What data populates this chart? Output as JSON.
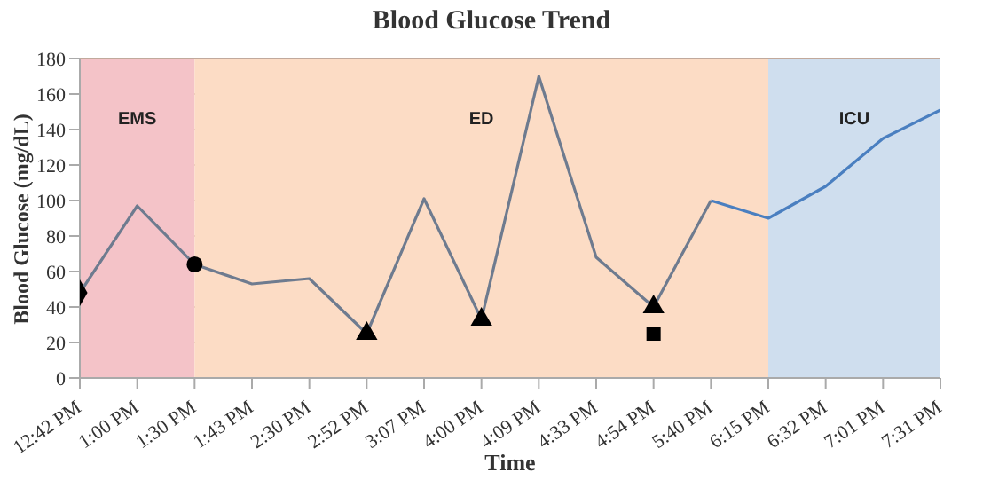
{
  "chart_data": {
    "type": "line",
    "title": "Blood Glucose Trend",
    "xlabel": "Time",
    "ylabel": "Blood Glucose (mg/dL)",
    "categories": [
      "12:42 PM",
      "1:00 PM",
      "1:30 PM",
      "1:43 PM",
      "2:30 PM",
      "2:52 PM",
      "3:07 PM",
      "4:00 PM",
      "4:09 PM",
      "4:33 PM",
      "4:54 PM",
      "5:40 PM",
      "6:15 PM",
      "6:32 PM",
      "7:01 PM",
      "7:31 PM"
    ],
    "series": [
      {
        "color": "#6e7b8f",
        "values": [
          48,
          97,
          64,
          53,
          56,
          25,
          101,
          33,
          170,
          68,
          40,
          100,
          null,
          null,
          null,
          null
        ]
      },
      {
        "color": "#4a7fc0",
        "values": [
          null,
          null,
          null,
          null,
          null,
          null,
          null,
          null,
          null,
          null,
          null,
          100,
          90,
          108,
          135,
          151
        ]
      },
      {
        "type": "scatter",
        "color": "#000000",
        "marker": "diamond",
        "x": [
          "12:42 PM"
        ],
        "values": [
          48
        ]
      },
      {
        "type": "scatter",
        "color": "#000000",
        "marker": "circle",
        "x": [
          "1:30 PM"
        ],
        "values": [
          64
        ]
      },
      {
        "type": "scatter",
        "color": "#000000",
        "marker": "triangle",
        "x": [
          "2:52 PM",
          "4:00 PM",
          "4:54 PM"
        ],
        "values": [
          25,
          33,
          40
        ]
      },
      {
        "type": "scatter",
        "color": "#000000",
        "marker": "square",
        "x": [
          "4:54 PM"
        ],
        "values": [
          25
        ]
      }
    ],
    "bands": [
      {
        "axis": "x",
        "from": "12:42 PM",
        "to": "1:30 PM",
        "label": "EMS",
        "color": "#f4c3c8"
      },
      {
        "axis": "x",
        "from": "1:30 PM",
        "to": "6:15 PM",
        "label": "ED",
        "color": "#fcdcc5"
      },
      {
        "axis": "x",
        "from": "6:15 PM",
        "to": "7:31 PM",
        "label": "ICU",
        "color": "#cfdeee"
      }
    ],
    "ylim": [
      0,
      180
    ],
    "yticks": [
      0,
      20,
      40,
      60,
      80,
      100,
      120,
      140,
      160,
      180
    ],
    "grid": "y",
    "legend": false
  }
}
